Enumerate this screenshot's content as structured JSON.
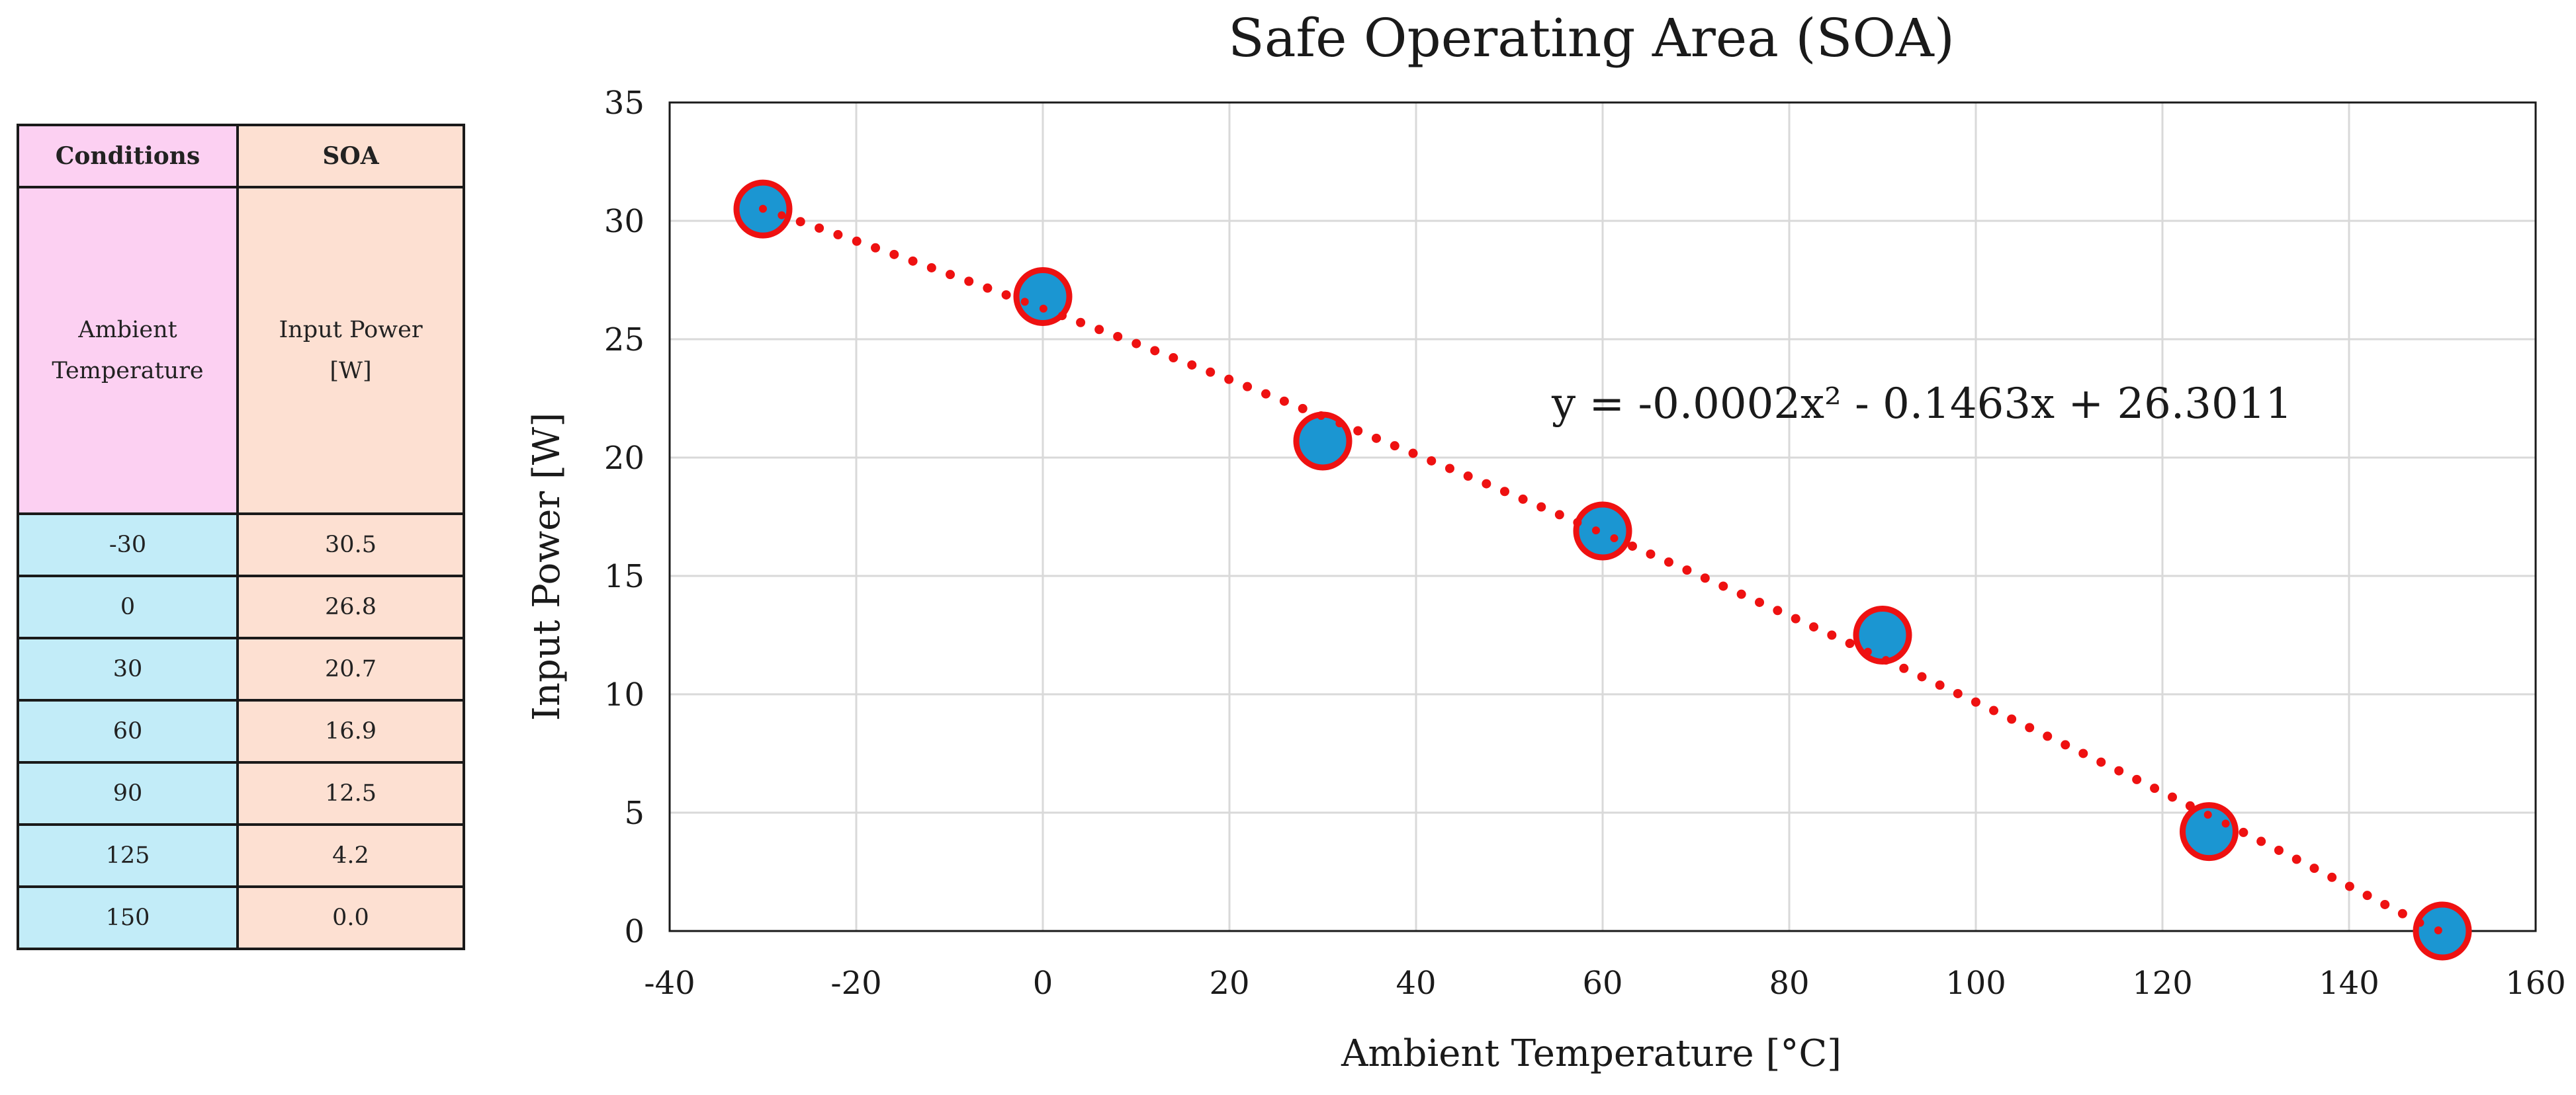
{
  "table": {
    "header": {
      "conditions": "Conditions",
      "soa": "SOA"
    },
    "subheader": {
      "conditions": "Ambient Temperature",
      "soa": "Input Power [W]"
    },
    "rows": [
      {
        "temp": "-30",
        "power": "30.5"
      },
      {
        "temp": "0",
        "power": "26.8"
      },
      {
        "temp": "30",
        "power": "20.7"
      },
      {
        "temp": "60",
        "power": "16.9"
      },
      {
        "temp": "90",
        "power": "12.5"
      },
      {
        "temp": "125",
        "power": "4.2"
      },
      {
        "temp": "150",
        "power": "0.0"
      }
    ]
  },
  "chart_data": {
    "type": "scatter",
    "title": "Safe Operating Area (SOA)",
    "xlabel": "Ambient Temperature [°C]",
    "ylabel": "Input Power [W]",
    "xlim": [
      -40,
      160
    ],
    "ylim": [
      0,
      35
    ],
    "xticks": [
      -40,
      -20,
      0,
      20,
      40,
      60,
      80,
      100,
      120,
      140,
      160
    ],
    "yticks": [
      0,
      5,
      10,
      15,
      20,
      25,
      30,
      35
    ],
    "grid": true,
    "series": [
      {
        "name": "SOA",
        "x": [
          -30,
          0,
          30,
          60,
          90,
          125,
          150
        ],
        "y": [
          30.5,
          26.8,
          20.7,
          16.9,
          12.5,
          4.2,
          0.0
        ],
        "marker_color": "#1b96d2",
        "marker_edge_color": "#ee1111"
      }
    ],
    "trendline": {
      "type": "polynomial",
      "coefficients": [
        -0.0002,
        -0.1463,
        26.3011
      ],
      "color": "#ee1111",
      "style": "dotted",
      "x_range": [
        -30,
        150
      ],
      "equation": "y = -0.0002x² - 0.1463x + 26.3011"
    }
  }
}
